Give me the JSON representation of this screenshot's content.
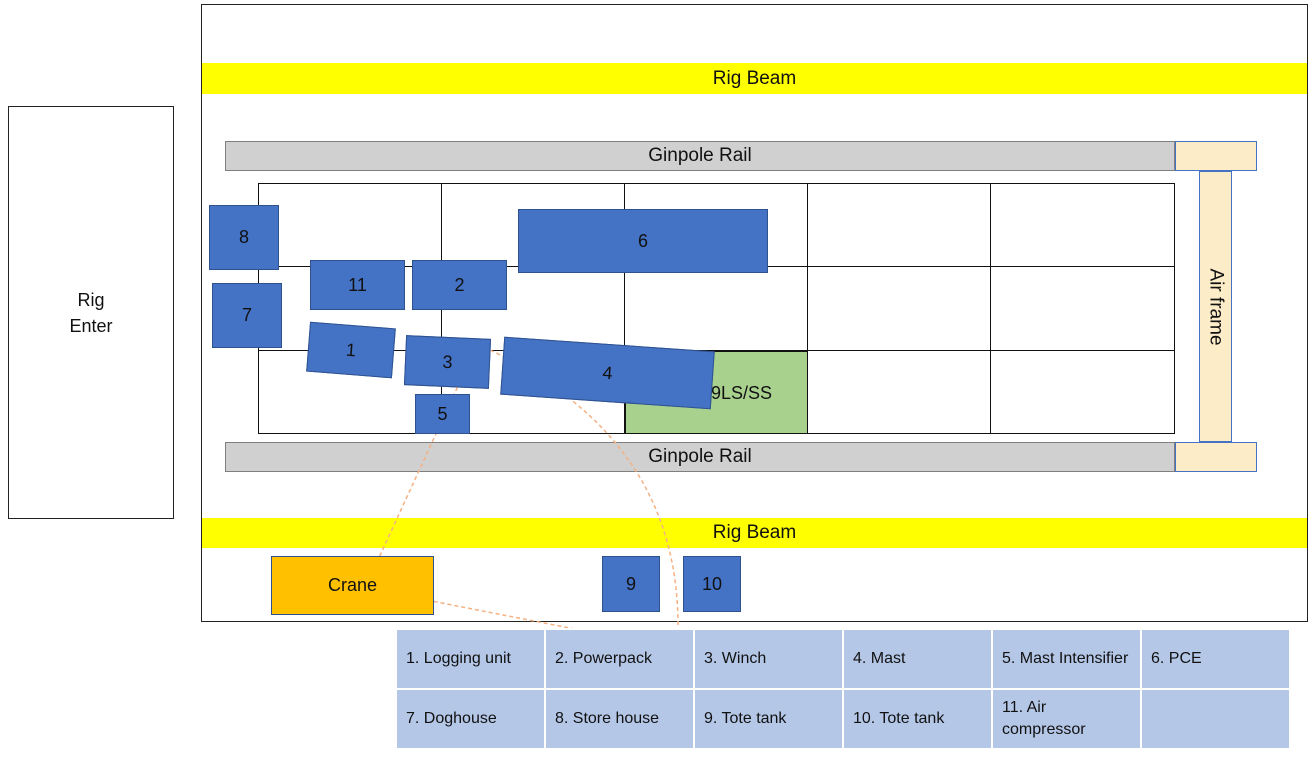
{
  "rig_enter": "Rig\nEnter",
  "rig_beam_top": "Rig Beam",
  "rig_beam_bottom": "Rig Beam",
  "ginpole_rail_top": "Ginpole Rail",
  "ginpole_rail_bottom": "Ginpole Rail",
  "air_frame": "Air frame",
  "well_zone": "9LS/SS",
  "crane": "Crane",
  "equipment": {
    "e1": "1",
    "e2": "2",
    "e3": "3",
    "e4": "4",
    "e5": "5",
    "e6": "6",
    "e7": "7",
    "e8": "8",
    "e9": "9",
    "e10": "10",
    "e11": "11"
  },
  "legend": [
    [
      "1. Logging unit",
      "2. Powerpack",
      "3. Winch",
      "4. Mast",
      "5. Mast Intensifier",
      "6. PCE"
    ],
    [
      "7. Doghouse",
      "8. Store house",
      "9. Tote tank",
      "10. Tote tank",
      "11. Air compressor",
      ""
    ]
  ],
  "colors": {
    "equipment": "#4472c4",
    "rig_beam": "#ffff00",
    "ginpole_rail": "#d0d0d0",
    "air_frame": "#fdecc8",
    "well_zone": "#a9d18e",
    "crane": "#ffc000",
    "crane_path": "#f4b183",
    "legend_cell": "#b4c7e7"
  }
}
